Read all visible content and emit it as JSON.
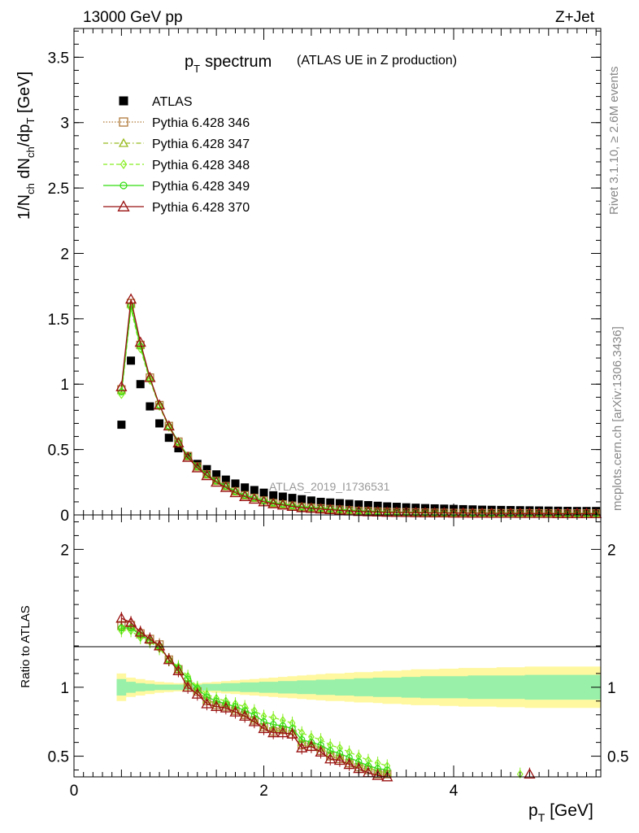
{
  "header": {
    "left": "13000 GeV pp",
    "right": "Z+Jet"
  },
  "side_labels": {
    "rivet": "Rivet 3.1.10, ≥ 2.6M events",
    "mcplots": "mcplots.cern.ch [arXiv:1306.3436]"
  },
  "chart_data": [
    {
      "type": "scatter",
      "panel": "main",
      "title_main": "p",
      "title_sub": "T",
      "title_rest": "spectrum",
      "title_extra": "(ATLAS UE in Z production)",
      "ylabel_parts": [
        "1/N",
        "ch",
        " dN",
        "ch",
        "/dp",
        "T",
        " [GeV]"
      ],
      "watermark": "ATLAS_2019_I1736531",
      "xlim": [
        0,
        5.55
      ],
      "ylim": [
        0,
        3.72
      ],
      "yticks": [
        0,
        0.5,
        1,
        1.5,
        2,
        2.5,
        3,
        3.5
      ],
      "ytick_labels": [
        "0",
        "0.5",
        "1",
        "1.5",
        "2",
        "2.5",
        "3",
        "3.5"
      ],
      "x": [
        0.5,
        0.6,
        0.7,
        0.8,
        0.9,
        1.0,
        1.1,
        1.2,
        1.3,
        1.4,
        1.5,
        1.6,
        1.7,
        1.8,
        1.9,
        2.0,
        2.1,
        2.2,
        2.3,
        2.4,
        2.5,
        2.6,
        2.7,
        2.8,
        2.9,
        3.0,
        3.1,
        3.2,
        3.3,
        3.4,
        3.5,
        3.6,
        3.7,
        3.8,
        3.9,
        4.0,
        4.1,
        4.2,
        4.3,
        4.4,
        4.5,
        4.6,
        4.7,
        4.8,
        4.9,
        5.0,
        5.1,
        5.2,
        5.3,
        5.4,
        5.5
      ],
      "series": [
        {
          "name": "ATLAS",
          "values": [
            0.69,
            1.18,
            1.0,
            0.83,
            0.7,
            0.59,
            0.51,
            0.45,
            0.39,
            0.35,
            0.31,
            0.27,
            0.24,
            0.21,
            0.19,
            0.17,
            0.15,
            0.14,
            0.13,
            0.12,
            0.11,
            0.1,
            0.095,
            0.09,
            0.085,
            0.08,
            0.075,
            0.07,
            0.065,
            0.062,
            0.058,
            0.055,
            0.052,
            0.05,
            0.048,
            0.046,
            0.044,
            0.042,
            0.04,
            0.039,
            0.038,
            0.037,
            0.036,
            0.035,
            0.034,
            0.033,
            0.032,
            0.031,
            0.03,
            0.03,
            0.03
          ]
        },
        {
          "name": "Pythia 6.428 346",
          "values": [
            0.96,
            1.62,
            1.3,
            1.05,
            0.84,
            0.68,
            0.56,
            0.45,
            0.37,
            0.31,
            0.26,
            0.22,
            0.18,
            0.15,
            0.13,
            0.11,
            0.09,
            0.08,
            0.07,
            0.06,
            0.055,
            0.05,
            0.045,
            0.04,
            0.035,
            0.03,
            0.028,
            0.025,
            0.023,
            0.021,
            0.02,
            0.019,
            0.018,
            0.017,
            0.016,
            0.015,
            0.015,
            0.014,
            0.014,
            0.013,
            0.013,
            0.013,
            0.012,
            0.012,
            0.012,
            0.012,
            0.011,
            0.011,
            0.011,
            0.011,
            0.011
          ]
        },
        {
          "name": "Pythia 6.428 347",
          "values": [
            0.95,
            1.61,
            1.3,
            1.05,
            0.84,
            0.68,
            0.56,
            0.45,
            0.37,
            0.31,
            0.26,
            0.22,
            0.18,
            0.15,
            0.13,
            0.11,
            0.09,
            0.08,
            0.07,
            0.06,
            0.055,
            0.05,
            0.045,
            0.04,
            0.035,
            0.03,
            0.028,
            0.025,
            0.023,
            0.021,
            0.02,
            0.019,
            0.018,
            0.017,
            0.016,
            0.015,
            0.015,
            0.014,
            0.014,
            0.013,
            0.013,
            0.013,
            0.012,
            0.012,
            0.012,
            0.012,
            0.011,
            0.011,
            0.011,
            0.011,
            0.011
          ]
        },
        {
          "name": "Pythia 6.428 348",
          "values": [
            0.92,
            1.58,
            1.27,
            1.03,
            0.83,
            0.67,
            0.55,
            0.45,
            0.37,
            0.31,
            0.26,
            0.22,
            0.18,
            0.15,
            0.13,
            0.11,
            0.095,
            0.085,
            0.075,
            0.065,
            0.06,
            0.055,
            0.048,
            0.043,
            0.038,
            0.033,
            0.03,
            0.027,
            0.024,
            0.022,
            0.02,
            0.019,
            0.018,
            0.017,
            0.016,
            0.015,
            0.015,
            0.014,
            0.014,
            0.013,
            0.013,
            0.013,
            0.012,
            0.012,
            0.012,
            0.012,
            0.011,
            0.011,
            0.011,
            0.011,
            0.011
          ]
        },
        {
          "name": "Pythia 6.428 349",
          "values": [
            0.94,
            1.6,
            1.29,
            1.04,
            0.84,
            0.68,
            0.56,
            0.45,
            0.37,
            0.31,
            0.26,
            0.22,
            0.18,
            0.15,
            0.13,
            0.11,
            0.092,
            0.082,
            0.072,
            0.062,
            0.056,
            0.051,
            0.046,
            0.041,
            0.036,
            0.031,
            0.029,
            0.026,
            0.023,
            0.021,
            0.02,
            0.019,
            0.018,
            0.017,
            0.016,
            0.015,
            0.015,
            0.014,
            0.014,
            0.013,
            0.013,
            0.013,
            0.012,
            0.012,
            0.012,
            0.012,
            0.011,
            0.011,
            0.011,
            0.011,
            0.011
          ]
        },
        {
          "name": "Pythia 6.428 370",
          "values": [
            0.98,
            1.65,
            1.32,
            1.05,
            0.84,
            0.68,
            0.55,
            0.44,
            0.36,
            0.3,
            0.25,
            0.21,
            0.17,
            0.14,
            0.12,
            0.1,
            0.085,
            0.075,
            0.065,
            0.055,
            0.05,
            0.045,
            0.04,
            0.035,
            0.03,
            0.026,
            0.024,
            0.022,
            0.02,
            0.019,
            0.018,
            0.017,
            0.016,
            0.015,
            0.015,
            0.014,
            0.014,
            0.013,
            0.013,
            0.012,
            0.012,
            0.012,
            0.011,
            0.011,
            0.011,
            0.011,
            0.01,
            0.01,
            0.01,
            0.01,
            0.01
          ]
        }
      ]
    },
    {
      "type": "line",
      "panel": "ratio",
      "ylabel": "Ratio to ATLAS",
      "xlabel_main": "p",
      "xlabel_sub": "T",
      "xlabel_rest": " [GeV]",
      "xlim": [
        0,
        5.55
      ],
      "ylim": [
        0.35,
        2.25
      ],
      "xticks": [
        0,
        2,
        4
      ],
      "xtick_labels": [
        "0",
        "2",
        "4"
      ],
      "yticks": [
        0.5,
        1,
        2
      ],
      "ytick_labels": [
        "0.5",
        "1",
        "2"
      ],
      "x": [
        0.5,
        0.6,
        0.7,
        0.8,
        0.9,
        1.0,
        1.1,
        1.2,
        1.3,
        1.4,
        1.5,
        1.6,
        1.7,
        1.8,
        1.9,
        2.0,
        2.1,
        2.2,
        2.3,
        2.4,
        2.5,
        2.6,
        2.7,
        2.8,
        2.9,
        3.0,
        3.1,
        3.2,
        3.3,
        3.4,
        3.5,
        3.6,
        3.7,
        3.8,
        3.9,
        4.0,
        4.1,
        4.2,
        4.3,
        4.4,
        4.5,
        4.6,
        4.7,
        4.8,
        4.9,
        5.0,
        5.1,
        5.2,
        5.3,
        5.4,
        5.5
      ],
      "band_inner": [
        0.06,
        0.04,
        0.03,
        0.025,
        0.02,
        0.02,
        0.02,
        0.02,
        0.02,
        0.025,
        0.025,
        0.03,
        0.03,
        0.035,
        0.035,
        0.04,
        0.04,
        0.045,
        0.045,
        0.05,
        0.05,
        0.055,
        0.055,
        0.06,
        0.06,
        0.065,
        0.065,
        0.07,
        0.07,
        0.07,
        0.075,
        0.075,
        0.08,
        0.08,
        0.08,
        0.08,
        0.08,
        0.085,
        0.085,
        0.085,
        0.085,
        0.085,
        0.085,
        0.09,
        0.09,
        0.09,
        0.09,
        0.09,
        0.09,
        0.09,
        0.09
      ],
      "band_outer": [
        0.1,
        0.07,
        0.06,
        0.05,
        0.04,
        0.035,
        0.03,
        0.03,
        0.03,
        0.035,
        0.04,
        0.045,
        0.05,
        0.055,
        0.06,
        0.065,
        0.07,
        0.075,
        0.08,
        0.085,
        0.09,
        0.095,
        0.1,
        0.1,
        0.105,
        0.11,
        0.11,
        0.115,
        0.12,
        0.12,
        0.125,
        0.13,
        0.13,
        0.13,
        0.135,
        0.135,
        0.14,
        0.14,
        0.14,
        0.14,
        0.145,
        0.145,
        0.145,
        0.15,
        0.15,
        0.15,
        0.15,
        0.15,
        0.15,
        0.15,
        0.15
      ],
      "series": [
        {
          "name": "Pythia 6.428 346",
          "values": [
            1.45,
            1.45,
            1.39,
            1.35,
            1.31,
            1.2,
            1.13,
            1.02,
            0.97,
            0.9,
            0.87,
            0.86,
            0.83,
            0.8,
            0.76,
            0.71,
            0.68,
            0.69,
            0.66,
            0.58,
            0.57,
            0.54,
            0.5,
            0.48,
            0.45,
            0.42,
            0.4,
            0.37,
            0.37,
            null,
            null,
            null,
            null,
            null,
            null,
            null,
            null,
            null,
            null,
            null,
            null,
            null,
            null,
            null,
            null,
            null,
            null,
            null,
            null,
            null,
            null
          ]
        },
        {
          "name": "Pythia 6.428 347",
          "values": [
            1.44,
            1.44,
            1.38,
            1.34,
            1.3,
            1.2,
            1.13,
            1.03,
            0.98,
            0.91,
            0.88,
            0.87,
            0.84,
            0.81,
            0.77,
            0.72,
            0.7,
            0.7,
            0.68,
            0.6,
            0.59,
            0.56,
            0.52,
            0.5,
            0.47,
            0.44,
            0.42,
            0.39,
            0.38,
            null,
            null,
            null,
            null,
            null,
            null,
            null,
            null,
            null,
            null,
            null,
            null,
            null,
            null,
            null,
            null,
            null,
            null,
            null,
            null,
            null,
            null
          ]
        },
        {
          "name": "Pythia 6.428 348",
          "values": [
            1.41,
            1.41,
            1.36,
            1.33,
            1.28,
            1.2,
            1.15,
            1.08,
            1.0,
            0.95,
            0.92,
            0.9,
            0.88,
            0.86,
            0.83,
            0.79,
            0.78,
            0.76,
            0.74,
            0.67,
            0.64,
            0.62,
            0.58,
            0.56,
            0.53,
            0.5,
            0.47,
            0.45,
            0.43,
            null,
            null,
            null,
            null,
            null,
            null,
            null,
            null,
            null,
            null,
            null,
            null,
            null,
            0.37,
            null,
            null,
            null,
            null,
            null,
            null,
            null,
            null
          ]
        },
        {
          "name": "Pythia 6.428 349",
          "values": [
            1.43,
            1.43,
            1.38,
            1.34,
            1.3,
            1.2,
            1.14,
            1.06,
            0.99,
            0.93,
            0.9,
            0.88,
            0.86,
            0.83,
            0.8,
            0.75,
            0.73,
            0.72,
            0.7,
            0.62,
            0.6,
            0.58,
            0.54,
            0.52,
            0.49,
            0.46,
            0.43,
            0.41,
            0.4,
            null,
            null,
            null,
            null,
            null,
            null,
            null,
            null,
            null,
            null,
            null,
            null,
            null,
            null,
            null,
            null,
            null,
            null,
            null,
            null,
            null,
            null
          ]
        },
        {
          "name": "Pythia 6.428 370",
          "values": [
            1.5,
            1.47,
            1.4,
            1.35,
            1.3,
            1.2,
            1.12,
            1.0,
            0.95,
            0.88,
            0.86,
            0.85,
            0.82,
            0.79,
            0.75,
            0.7,
            0.67,
            0.67,
            0.66,
            0.56,
            0.57,
            0.53,
            0.48,
            0.47,
            0.44,
            0.41,
            0.38,
            0.36,
            0.35,
            null,
            null,
            null,
            null,
            null,
            null,
            null,
            null,
            null,
            null,
            null,
            null,
            null,
            null,
            0.37,
            null,
            null,
            null,
            null,
            null,
            null,
            null
          ]
        }
      ]
    }
  ],
  "styles": {
    "ATLAS": {
      "color": "#000000",
      "marker": "square",
      "dash": ""
    },
    "Pythia 6.428 346": {
      "color": "#b07a3a",
      "marker": "open-square",
      "dash": "1.5,2"
    },
    "Pythia 6.428 347": {
      "color": "#99bb22",
      "marker": "open-triangle",
      "dash": "6,3,1.5,3"
    },
    "Pythia 6.428 348": {
      "color": "#88ee22",
      "marker": "open-diamond",
      "dash": "5,3"
    },
    "Pythia 6.428 349": {
      "color": "#33dd11",
      "marker": "open-circle-cross",
      "dash": ""
    },
    "Pythia 6.428 370": {
      "color": "#991111",
      "marker": "open-triangle-big",
      "dash": ""
    },
    "band_inner_color": "#99f0a8",
    "band_outer_color": "#fff8a0"
  }
}
